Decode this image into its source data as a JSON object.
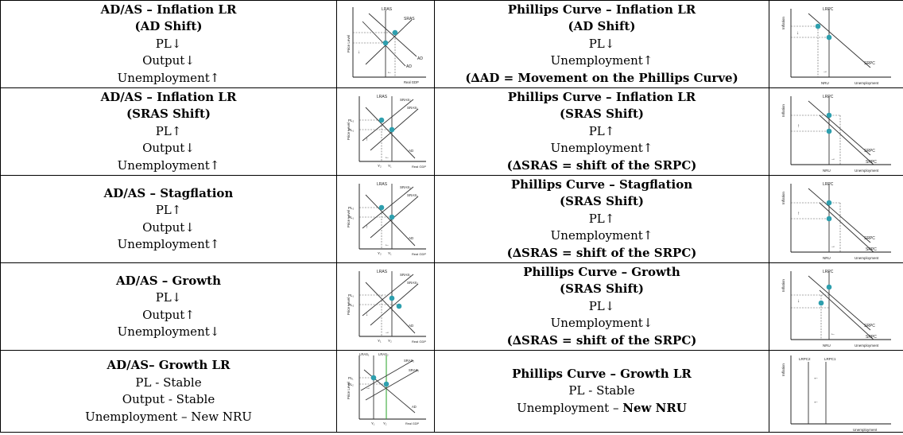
{
  "rows": [
    {
      "ad_lines": [
        {
          "text": "AD/AS – Inflation LR",
          "bold": true
        },
        {
          "text": "(AD Shift)",
          "bold": true
        },
        {
          "text": "PL↓",
          "bold": false
        },
        {
          "text": "Output↓",
          "bold": false
        },
        {
          "text": "Unemployment↑",
          "bold": false
        }
      ],
      "ad_graph": {
        "y_axis": "Price Level",
        "x_axis": "Real GDP",
        "labels": [
          "LRAS",
          "SRAS",
          "AD",
          "AD"
        ],
        "arrows": [
          "↓",
          "←"
        ]
      },
      "pc_lines": [
        {
          "text": "Phillips Curve – Inflation LR",
          "bold": true
        },
        {
          "text": "(AD Shift)",
          "bold": true
        },
        {
          "text": "PL↓",
          "bold": false
        },
        {
          "text": "Unemployment↑",
          "bold": false
        },
        {
          "text": "(∆AD = Movement on the Phillips Curve)",
          "bold": true
        }
      ],
      "pc_graph": {
        "y_axis": "Inflation",
        "x_axis": "Unemployment",
        "labels": [
          "LRPC",
          "SRPC",
          "NRU"
        ],
        "arrows": [
          "↓",
          "→"
        ]
      }
    },
    {
      "ad_lines": [
        {
          "text": "AD/AS – Inflation LR",
          "bold": true
        },
        {
          "text": "(SRAS Shift)",
          "bold": true
        },
        {
          "text": "PL↑",
          "bold": false
        },
        {
          "text": "Output↓",
          "bold": false
        },
        {
          "text": "Unemployment↑",
          "bold": false
        }
      ],
      "ad_graph": {
        "y_axis": "Price Level",
        "x_axis": "Real GDP",
        "labels": [
          "LRAS",
          "SRAS₂",
          "SRAS₁",
          "AD",
          "PL₂",
          "PL₁",
          "Y₂",
          "Y₁"
        ],
        "arrows": [
          "↑",
          "←"
        ]
      },
      "pc_lines": [
        {
          "text": "Phillips Curve – Inflation LR",
          "bold": true
        },
        {
          "text": "(SRAS Shift)",
          "bold": true
        },
        {
          "text": "PL↑",
          "bold": false
        },
        {
          "text": "Unemployment↑",
          "bold": false
        },
        {
          "text": "(∆SRAS = shift of the SRPC)",
          "bold": true
        }
      ],
      "pc_graph": {
        "y_axis": "Inflation",
        "x_axis": "Unemployment",
        "labels": [
          "LRPC",
          "SRPC",
          "SRPC",
          "NRU"
        ],
        "arrows": [
          "↑",
          "→"
        ]
      }
    },
    {
      "ad_lines": [
        {
          "text": "AD/AS – Stagflation",
          "bold": true
        },
        {
          "text": "PL↑",
          "bold": false
        },
        {
          "text": "Output↓",
          "bold": false
        },
        {
          "text": "Unemployment↑",
          "bold": false
        }
      ],
      "ad_graph": {
        "y_axis": "Price Level",
        "x_axis": "Real GDP",
        "labels": [
          "LRAS",
          "SRAS₂",
          "SRAS₁",
          "AD",
          "PL₂",
          "PL₁",
          "Y₂",
          "Y₁"
        ],
        "arrows": [
          "↑",
          "←"
        ]
      },
      "pc_lines": [
        {
          "text": "Phillips Curve – Stagflation",
          "bold": true
        },
        {
          "text": "(SRAS Shift)",
          "bold": true
        },
        {
          "text": "PL↑",
          "bold": false
        },
        {
          "text": "Unemployment↑",
          "bold": false
        },
        {
          "text": "(∆SRAS = shift of the SRPC)",
          "bold": true
        }
      ],
      "pc_graph": {
        "y_axis": "Inflation",
        "x_axis": "Unemployment",
        "labels": [
          "LRPC",
          "SRPC",
          "SRPC",
          "NRU"
        ],
        "arrows": [
          "↑",
          "→"
        ]
      }
    },
    {
      "ad_lines": [
        {
          "text": "AD/AS – Growth",
          "bold": true
        },
        {
          "text": "PL↓",
          "bold": false
        },
        {
          "text": "Output↑",
          "bold": false
        },
        {
          "text": "Unemployment↓",
          "bold": false
        }
      ],
      "ad_graph": {
        "y_axis": "Price Level",
        "x_axis": "Real GDP",
        "labels": [
          "LRAS",
          "SRAS₁",
          "SRAS₂",
          "AD",
          "PL₁",
          "PL₂",
          "Y₁",
          "Y₂"
        ],
        "arrows": [
          "↓",
          "→"
        ]
      },
      "pc_lines": [
        {
          "text": "Phillips Curve – Growth",
          "bold": true
        },
        {
          "text": "(SRAS Shift)",
          "bold": true
        },
        {
          "text": "PL↓",
          "bold": false
        },
        {
          "text": "Unemployment↓",
          "bold": false
        },
        {
          "text": "(∆SRAS = shift of the SRPC)",
          "bold": true
        }
      ],
      "pc_graph": {
        "y_axis": "Inflation",
        "x_axis": "Unemployment",
        "labels": [
          "LRPC",
          "SRPC",
          "SRPC",
          "NRU"
        ],
        "arrows": [
          "↓",
          "←"
        ]
      }
    },
    {
      "ad_lines": [
        {
          "text": "AD/AS– Growth LR",
          "bold": true
        },
        {
          "text": "PL - Stable",
          "bold": false
        },
        {
          "text": "Output - Stable",
          "bold": false
        },
        {
          "text": "Unemployment – New NRU",
          "bold": false
        }
      ],
      "ad_graph": {
        "y_axis": "Price Level",
        "x_axis": "Real GDP",
        "labels": [
          "LRAS₁",
          "LRAS₂",
          "SRAS₁",
          "SRAS₂",
          "AD",
          "PL₁",
          "PL₂",
          "Y₁",
          "Y₂"
        ],
        "arrows": [
          "→"
        ]
      },
      "pc_lines": [
        {
          "text": "Phillips Curve – Growth LR",
          "bold": true
        },
        {
          "text": "PL - Stable",
          "bold": false
        },
        {
          "text": "Unemployment – New NRU",
          "bold": false,
          "bold_suffix": "New NRU"
        }
      ],
      "pc_graph": {
        "y_axis": "Inflation",
        "x_axis": "Unemployment",
        "labels": [
          "LRPC2",
          "LRPC1"
        ],
        "arrows": [
          "←",
          "←"
        ]
      }
    }
  ],
  "colors": {
    "dot": "#2e9fae",
    "line": "#333333",
    "guide": "#555555",
    "green_line": "#3aa83a"
  }
}
